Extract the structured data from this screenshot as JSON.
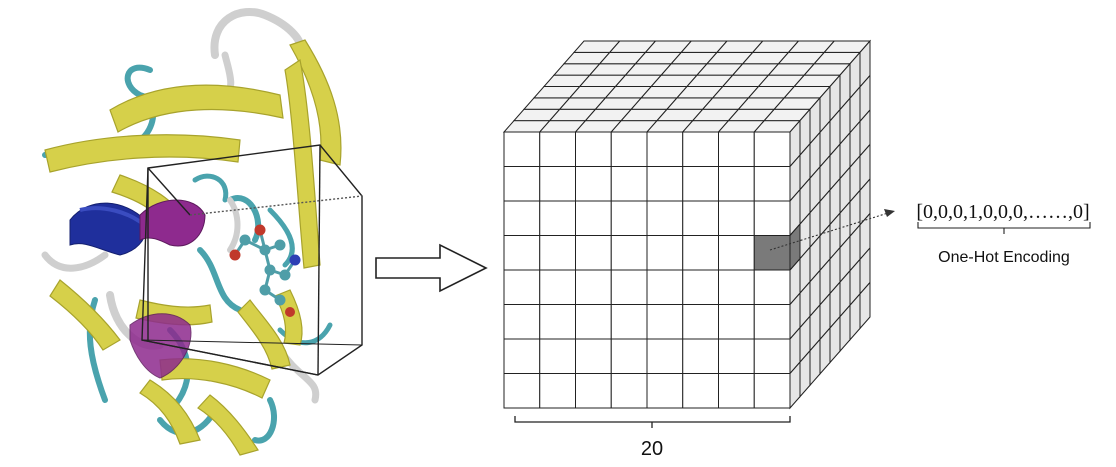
{
  "voxel_grid": {
    "size_label": "20",
    "front_columns": 8,
    "front_rows": 8,
    "depth_layers": 8,
    "highlight_cell": {
      "column": 7,
      "row": 3
    },
    "colors": {
      "front_face": "#ffffff",
      "top_face": "#f2f2f2",
      "side_face": "#e6e6e6",
      "grid_line": "#222222",
      "highlight": "#7a7a7a"
    }
  },
  "encoding": {
    "vector_text": "[0,0,0,1,0,0,0,……,0]",
    "caption": "One-Hot Encoding"
  },
  "protein": {
    "colors": {
      "sheet": "#d6d04a",
      "sheet_dark": "#a8a32c",
      "coil": "#4aa3ad",
      "turn": "#d9d9d9",
      "helix_blue": "#1f2f9c",
      "helix_purple": "#8e2a8e",
      "ligand": "#4f9ea8",
      "ligand_red": "#c0392b",
      "ligand_blue": "#2d3fb5"
    }
  }
}
